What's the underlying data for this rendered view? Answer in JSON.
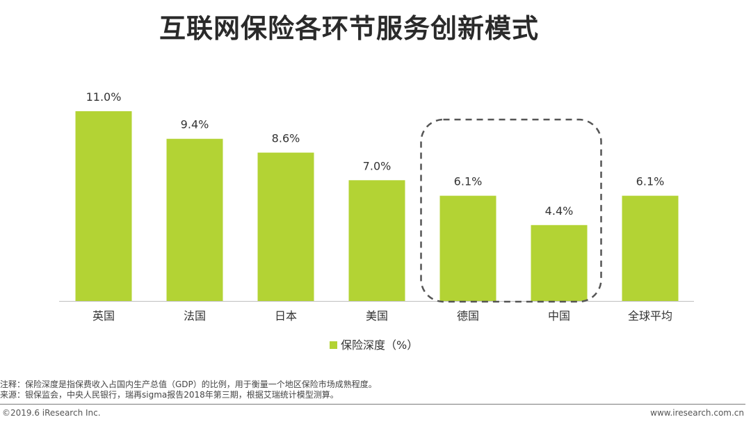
{
  "page": {
    "title": "互联网保险各环节服务创新模式"
  },
  "chart_data": {
    "type": "bar",
    "title": "",
    "xlabel": "",
    "ylabel": "",
    "ylim": [
      0,
      11.0
    ],
    "grid": false,
    "legend_position": "bottom-center",
    "categories": [
      "英国",
      "法国",
      "日本",
      "美国",
      "德国",
      "中国",
      "全球平均"
    ],
    "series": [
      {
        "name": "保险深度（%）",
        "values": [
          11.0,
          9.4,
          8.6,
          7.0,
          6.1,
          4.4,
          6.1
        ],
        "labels": [
          "11.0%",
          "9.4%",
          "8.6%",
          "7.0%",
          "6.1%",
          "4.4%",
          "6.1%"
        ],
        "color": "#b3d334"
      }
    ],
    "highlight": {
      "categories": [
        "德国",
        "中国"
      ],
      "style": "dashed-rounded-box",
      "color": "#555555"
    }
  },
  "notes": {
    "note": "注释：保险深度是指保费收入占国内生产总值（GDP）的比例，用于衡量一个地区保险市场成熟程度。",
    "source": "来源：银保监会，中央人民银行，瑞再sigma报告2018年第三期，根据艾瑞统计模型测算。"
  },
  "footer": {
    "copyright": "©2019.6 iResearch Inc.",
    "website": "www.iresearch.com.cn"
  }
}
